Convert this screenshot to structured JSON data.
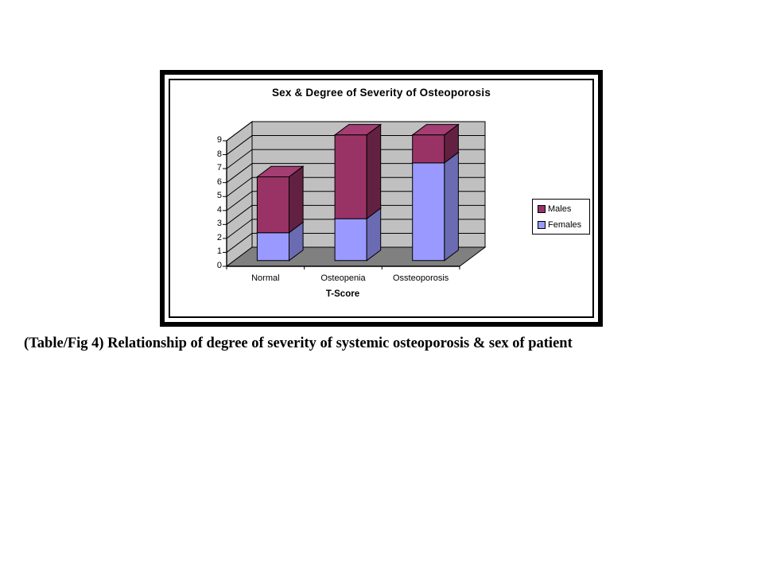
{
  "caption": "(Table/Fig 4) Relationship of degree of severity of systemic osteoporosis & sex of patient",
  "chart_data": {
    "type": "bar",
    "subtype": "3d-stacked-column",
    "title": "Sex & Degree of Severity of Osteoporosis",
    "xlabel": "T-Score",
    "ylabel": "",
    "categories": [
      "Normal",
      "Osteopenia",
      "Ossteoporosis"
    ],
    "series": [
      {
        "name": "Females",
        "values": [
          2,
          3,
          7
        ],
        "color": "#9999ff",
        "side_color": "#6b6bb3",
        "top_color": "#adadf9"
      },
      {
        "name": "Males",
        "values": [
          4,
          6,
          2
        ],
        "color": "#993366",
        "side_color": "#632142",
        "top_color": "#a33d72"
      }
    ],
    "stacked_totals": [
      6,
      9,
      9
    ],
    "ylim": [
      0,
      9
    ],
    "ytick_step": 1,
    "grid": true,
    "legend_position": "right",
    "legend_order": [
      "Males",
      "Females"
    ],
    "wall_color": "#c0c0c0",
    "floor_color": "#808080",
    "line_color": "#000000"
  }
}
